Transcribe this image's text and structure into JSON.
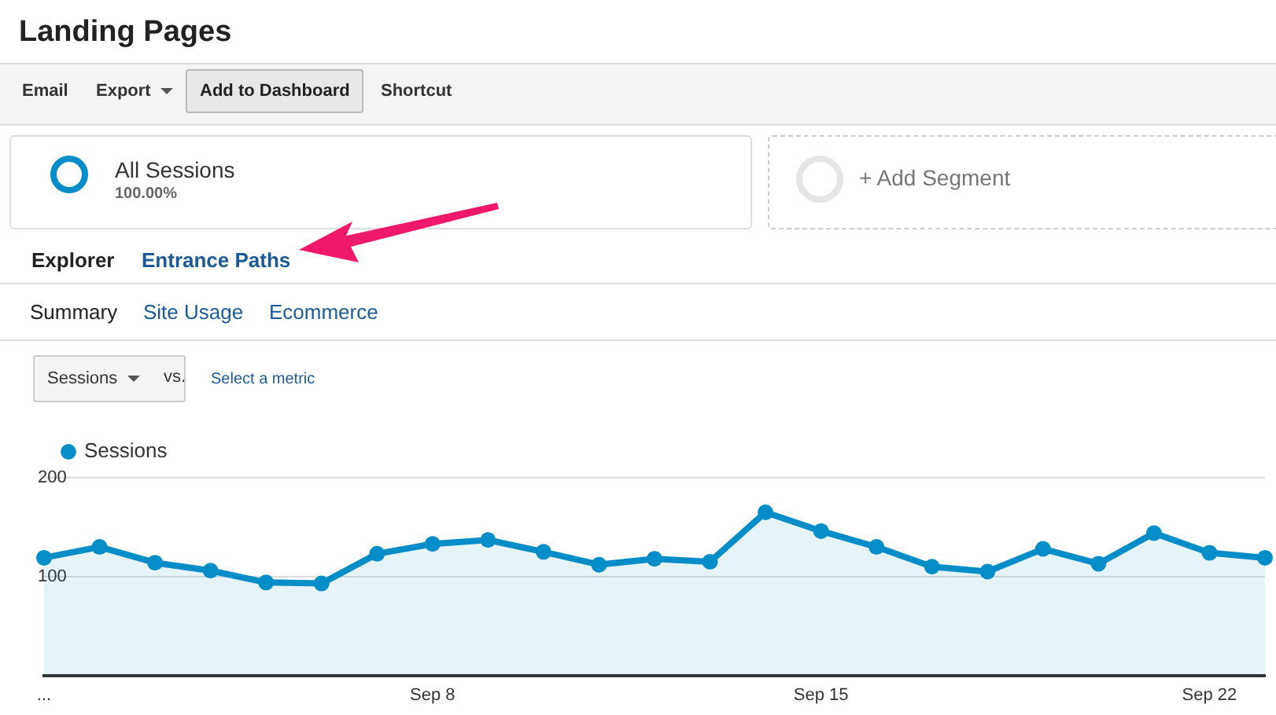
{
  "chart_data": {
    "type": "area",
    "title": "Landing Pages",
    "annotations": [
      "Email",
      "Export",
      "Add to Dashboard",
      "Shortcut",
      "All Sessions",
      "100.00%",
      "+ Add Segment",
      "Explorer",
      "Entrance Paths",
      "Summary",
      "Site Usage",
      "Ecommerce",
      "Sessions",
      "vs.",
      "Select a metric"
    ],
    "categories": [
      "...",
      null,
      null,
      null,
      null,
      null,
      null,
      "Sep 8",
      null,
      null,
      null,
      null,
      null,
      null,
      "Sep 15",
      null,
      null,
      null,
      null,
      null,
      null,
      "Sep 22",
      null
    ],
    "series": [
      {
        "name": "Sessions",
        "color": "#058dc7",
        "values": [
          119,
          130,
          114,
          106,
          94,
          93,
          123,
          133,
          137,
          125,
          112,
          118,
          115,
          165,
          146,
          130,
          110,
          105,
          128,
          113,
          144,
          124,
          119
        ]
      }
    ],
    "ylim": [
      0,
      200
    ],
    "yticks": [
      100,
      200
    ],
    "grid": "y",
    "legend": "top left",
    "marker": "circle",
    "line_style": "solid"
  }
}
